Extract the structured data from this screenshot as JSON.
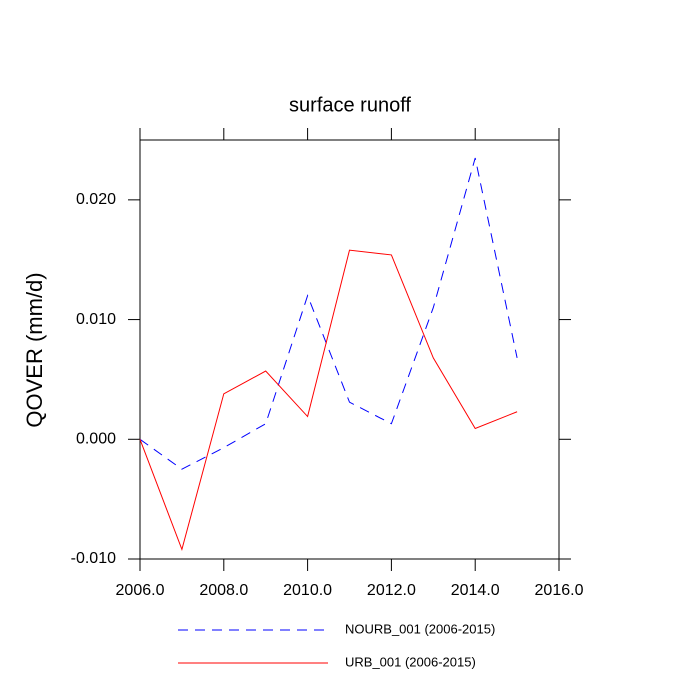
{
  "chart_data": {
    "type": "line",
    "title": "surface runoff",
    "y_label": "QOVER  (mm/d)",
    "x": [
      2006,
      2007,
      2008,
      2009,
      2010,
      2011,
      2012,
      2013,
      2014,
      2015
    ],
    "series": [
      {
        "name": "NOURB_001 (2006-2015)",
        "color": "#0000ff",
        "dash": true,
        "values": [
          0.0,
          -0.0025,
          -0.0007,
          0.0013,
          0.012,
          0.0031,
          0.0013,
          0.011,
          0.0235,
          0.0068
        ]
      },
      {
        "name": "URB_001 (2006-2015)",
        "color": "#ff0000",
        "dash": false,
        "values": [
          0.0,
          -0.0092,
          0.0038,
          0.0057,
          0.0019,
          0.0158,
          0.0154,
          0.0068,
          0.0009,
          0.0023
        ]
      }
    ],
    "xlim": [
      2006,
      2016
    ],
    "xticks": [
      {
        "value": 2006,
        "label": "2006.0"
      },
      {
        "value": 2008,
        "label": "2008.0"
      },
      {
        "value": 2010,
        "label": "2010.0"
      },
      {
        "value": 2012,
        "label": "2012.0"
      },
      {
        "value": 2014,
        "label": "2014.0"
      },
      {
        "value": 2016,
        "label": "2016.0"
      }
    ],
    "ylim": [
      -0.01,
      0.025
    ],
    "yticks": [
      {
        "value": -0.01,
        "label": "-0.010"
      },
      {
        "value": 0,
        "label": "0.000"
      },
      {
        "value": 0.01,
        "label": "0.010"
      },
      {
        "value": 0.02,
        "label": "0.020"
      }
    ],
    "legend": "bottom"
  }
}
